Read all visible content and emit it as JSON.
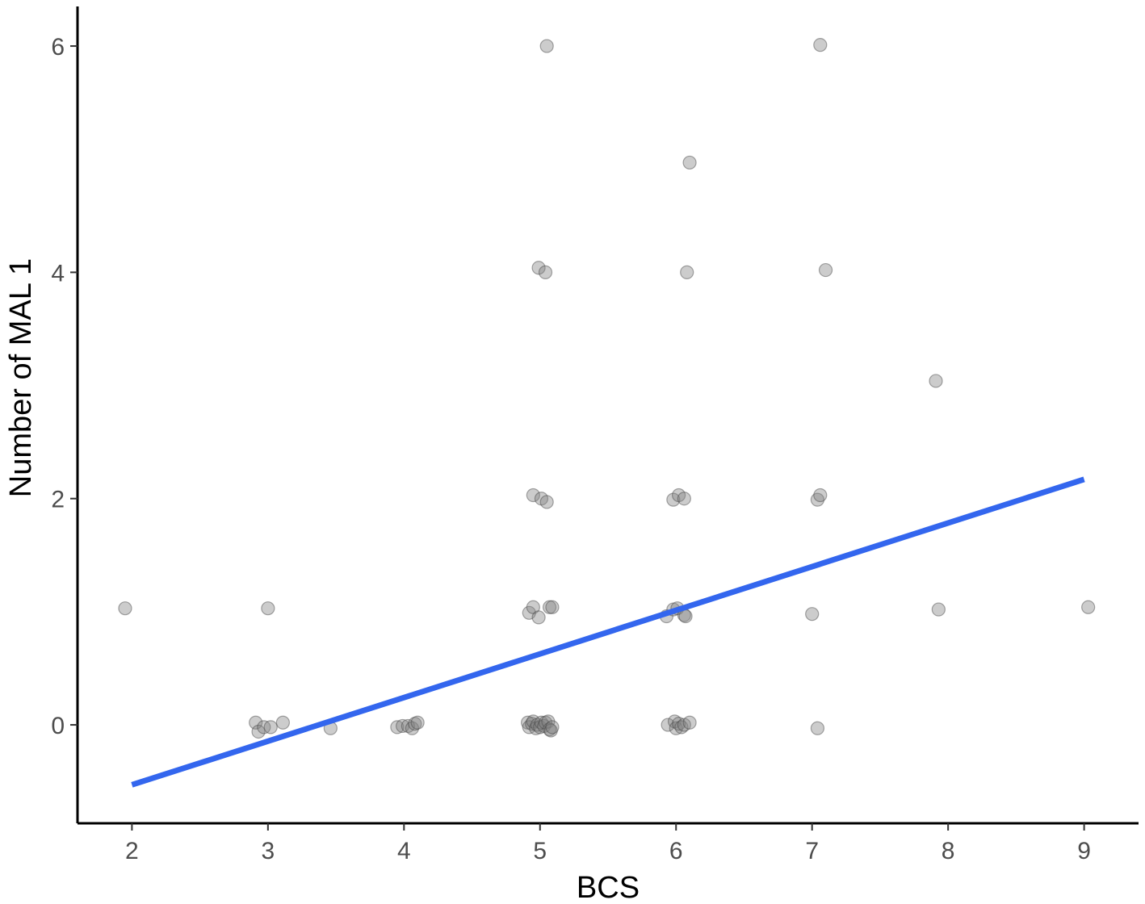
{
  "chart_data": {
    "type": "scatter",
    "xlabel": "BCS",
    "ylabel": "Number of MAL 1",
    "xlim": [
      1.6,
      9.4
    ],
    "ylim": [
      -0.87,
      6.35
    ],
    "x_ticks": [
      2,
      3,
      4,
      5,
      6,
      7,
      8,
      9
    ],
    "y_ticks": [
      0,
      2,
      4,
      6
    ],
    "grid": false,
    "legend": "none",
    "point_color": "#808080",
    "point_opacity": 0.4,
    "line_color": "#3366ee",
    "series": [
      {
        "points": [
          [
            1.95,
            1.03
          ],
          [
            3.0,
            1.03
          ],
          [
            5.05,
            6.0
          ],
          [
            7.06,
            6.01
          ],
          [
            6.1,
            4.97
          ],
          [
            4.99,
            4.04
          ],
          [
            5.04,
            4.0
          ],
          [
            6.08,
            4.0
          ],
          [
            7.1,
            4.02
          ],
          [
            7.91,
            3.04
          ],
          [
            4.95,
            2.03
          ],
          [
            5.01,
            2.0
          ],
          [
            5.05,
            1.97
          ],
          [
            5.98,
            1.99
          ],
          [
            6.02,
            2.03
          ],
          [
            6.06,
            2.0
          ],
          [
            7.04,
            1.99
          ],
          [
            7.06,
            2.03
          ],
          [
            4.92,
            0.99
          ],
          [
            4.95,
            1.04
          ],
          [
            4.99,
            0.95
          ],
          [
            5.07,
            1.04
          ],
          [
            5.09,
            1.04
          ],
          [
            5.93,
            0.96
          ],
          [
            5.98,
            1.02
          ],
          [
            6.01,
            1.03
          ],
          [
            6.06,
            0.97
          ],
          [
            6.07,
            0.96
          ],
          [
            7.0,
            0.98
          ],
          [
            7.93,
            1.02
          ],
          [
            9.03,
            1.04
          ],
          [
            2.91,
            0.02
          ],
          [
            2.93,
            -0.06
          ],
          [
            2.97,
            -0.02
          ],
          [
            3.02,
            -0.02
          ],
          [
            3.11,
            0.02
          ],
          [
            3.46,
            -0.03
          ],
          [
            3.95,
            -0.02
          ],
          [
            3.99,
            -0.01
          ],
          [
            4.03,
            -0.01
          ],
          [
            4.06,
            -0.03
          ],
          [
            4.08,
            0.01
          ],
          [
            4.1,
            0.02
          ],
          [
            4.91,
            0.02
          ],
          [
            4.92,
            -0.02
          ],
          [
            4.94,
            0.01
          ],
          [
            4.95,
            0.03
          ],
          [
            4.97,
            -0.03
          ],
          [
            4.98,
            0.0
          ],
          [
            5.0,
            -0.02
          ],
          [
            5.01,
            0.02
          ],
          [
            5.03,
            -0.01
          ],
          [
            5.04,
            0.02
          ],
          [
            5.06,
            0.03
          ],
          [
            5.07,
            -0.04
          ],
          [
            5.08,
            -0.05
          ],
          [
            5.09,
            -0.02
          ],
          [
            5.94,
            0.0
          ],
          [
            5.99,
            0.03
          ],
          [
            6.0,
            -0.03
          ],
          [
            6.02,
            0.01
          ],
          [
            6.04,
            -0.02
          ],
          [
            6.06,
            0.0
          ],
          [
            6.1,
            0.02
          ],
          [
            7.04,
            -0.03
          ]
        ]
      }
    ],
    "fit_line": {
      "x": [
        2.0,
        9.0
      ],
      "y": [
        -0.53,
        2.17
      ]
    }
  }
}
